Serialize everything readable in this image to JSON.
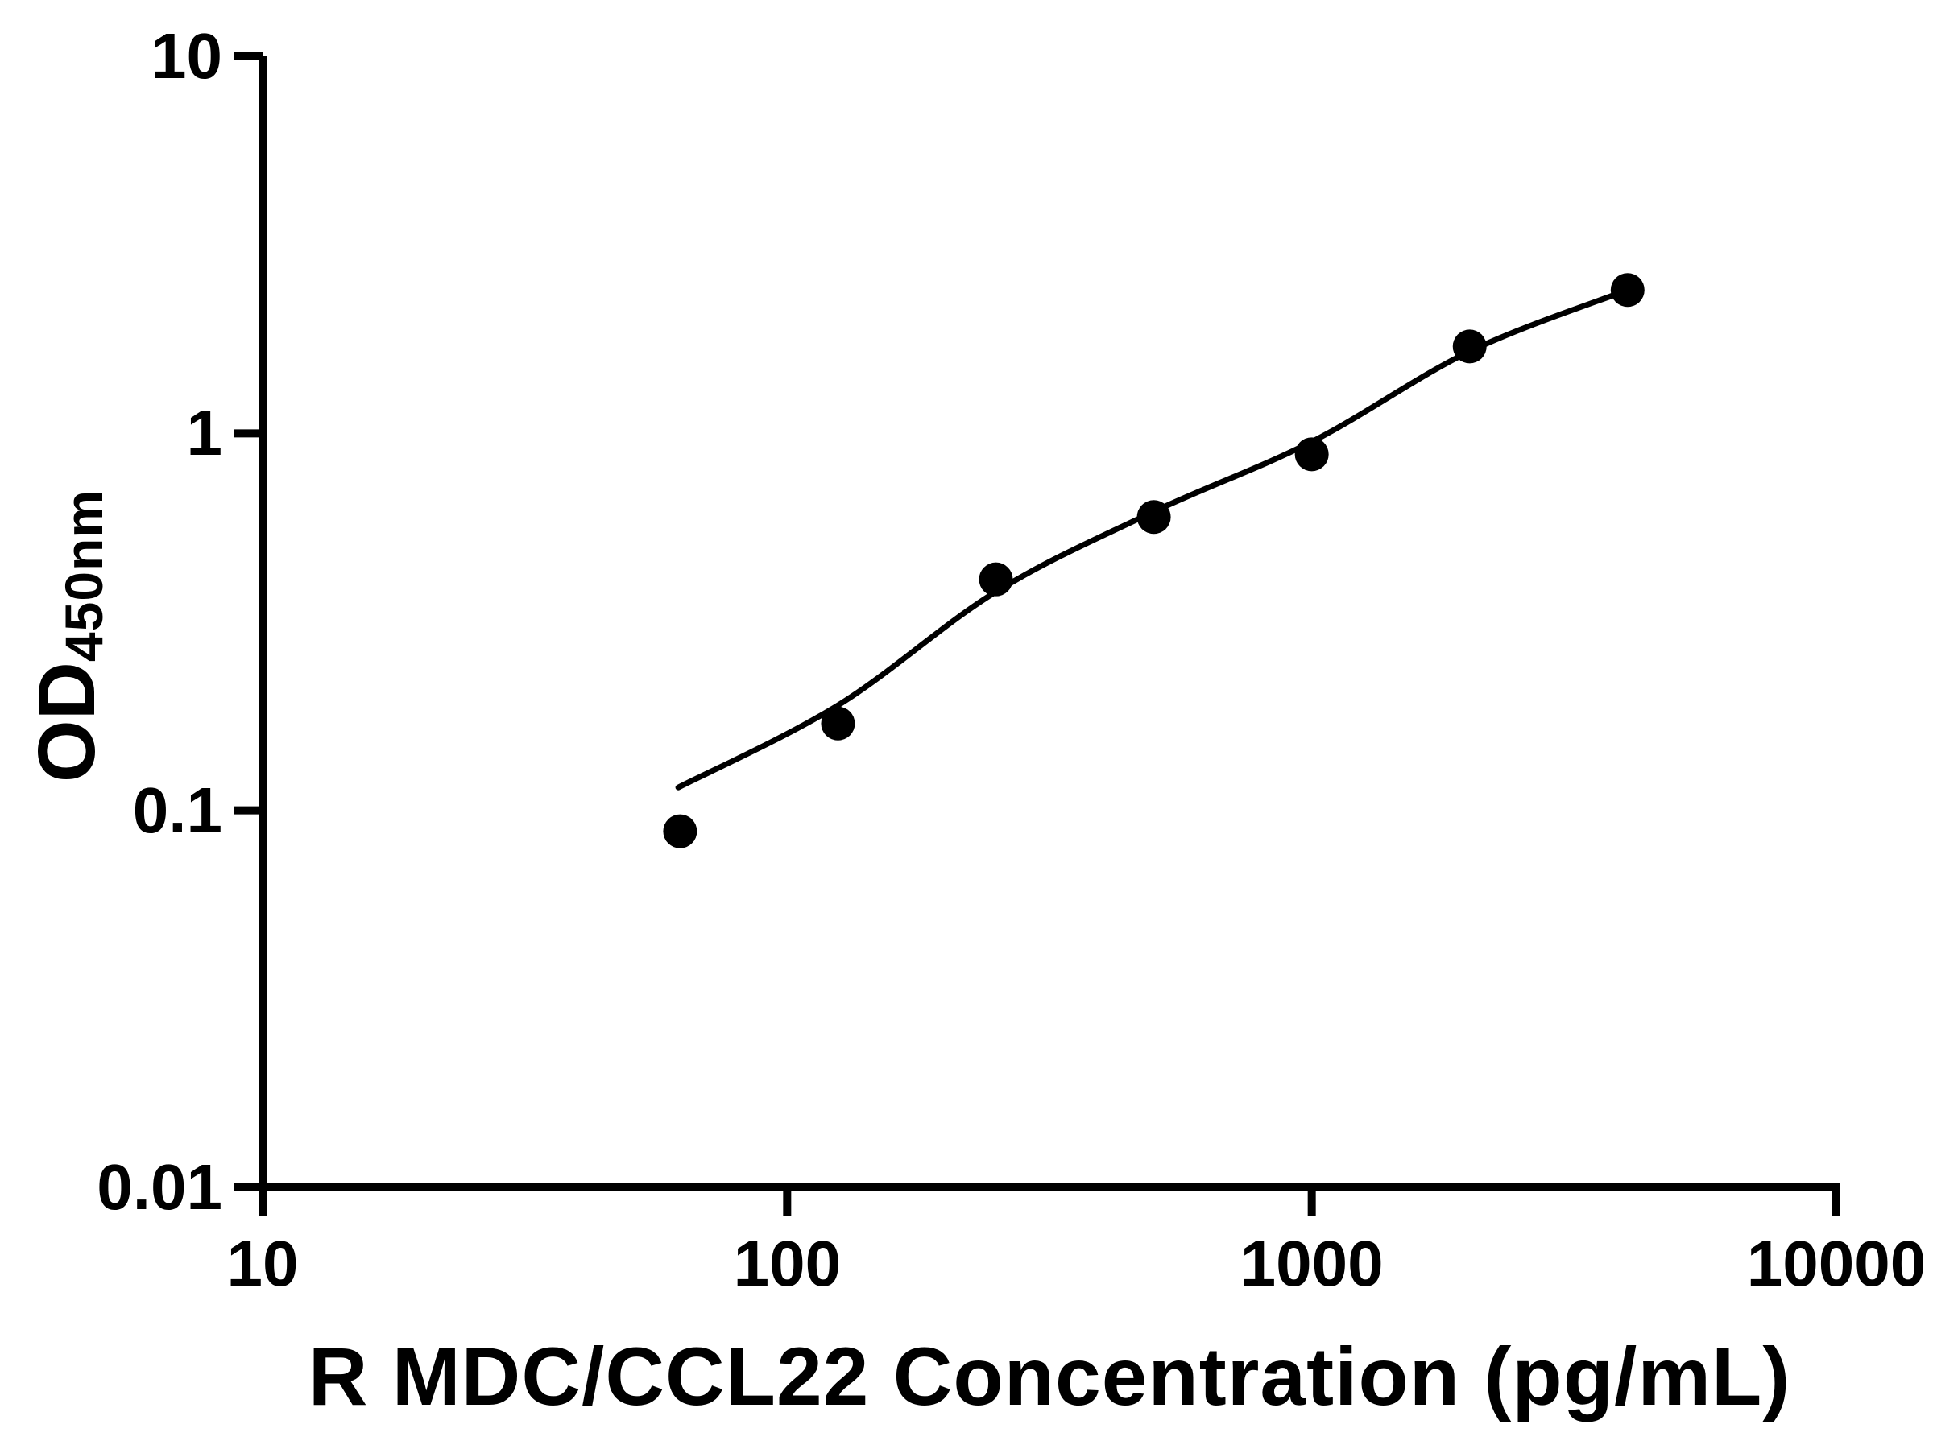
{
  "page": {
    "background_color": "#ffffff",
    "foreground_color": "#000000"
  },
  "chart_data": {
    "type": "scatter",
    "title": "",
    "xlabel": "R MDC/CCL22 Concentration (pg/mL)",
    "ylabel": "OD450nm",
    "ylabel_main": "OD",
    "ylabel_subscript": "450nm",
    "x_scale": "log",
    "y_scale": "log",
    "xlim": [
      10,
      10000
    ],
    "ylim": [
      0.01,
      10
    ],
    "x_tick_values": [
      10,
      100,
      1000,
      10000
    ],
    "x_tick_labels": [
      "10",
      "100",
      "1000",
      "10000"
    ],
    "y_tick_values": [
      0.01,
      0.1,
      1,
      10
    ],
    "y_tick_labels": [
      "0.01",
      "0.1",
      "1",
      "10"
    ],
    "grid": false,
    "legend": false,
    "marker_color": "#000000",
    "line_color": "#000000",
    "series": [
      {
        "name": "standard-curve-points",
        "type": "scatter",
        "marker": "circle",
        "x": [
          62.5,
          125,
          250,
          500,
          1000,
          2000,
          4000
        ],
        "y": [
          0.088,
          0.17,
          0.41,
          0.6,
          0.88,
          1.7,
          2.4
        ]
      },
      {
        "name": "fit-curve",
        "type": "line",
        "x": [
          62,
          125,
          250,
          500,
          1000,
          2000,
          4000
        ],
        "y": [
          0.115,
          0.19,
          0.38,
          0.62,
          0.95,
          1.65,
          2.4
        ]
      }
    ]
  }
}
